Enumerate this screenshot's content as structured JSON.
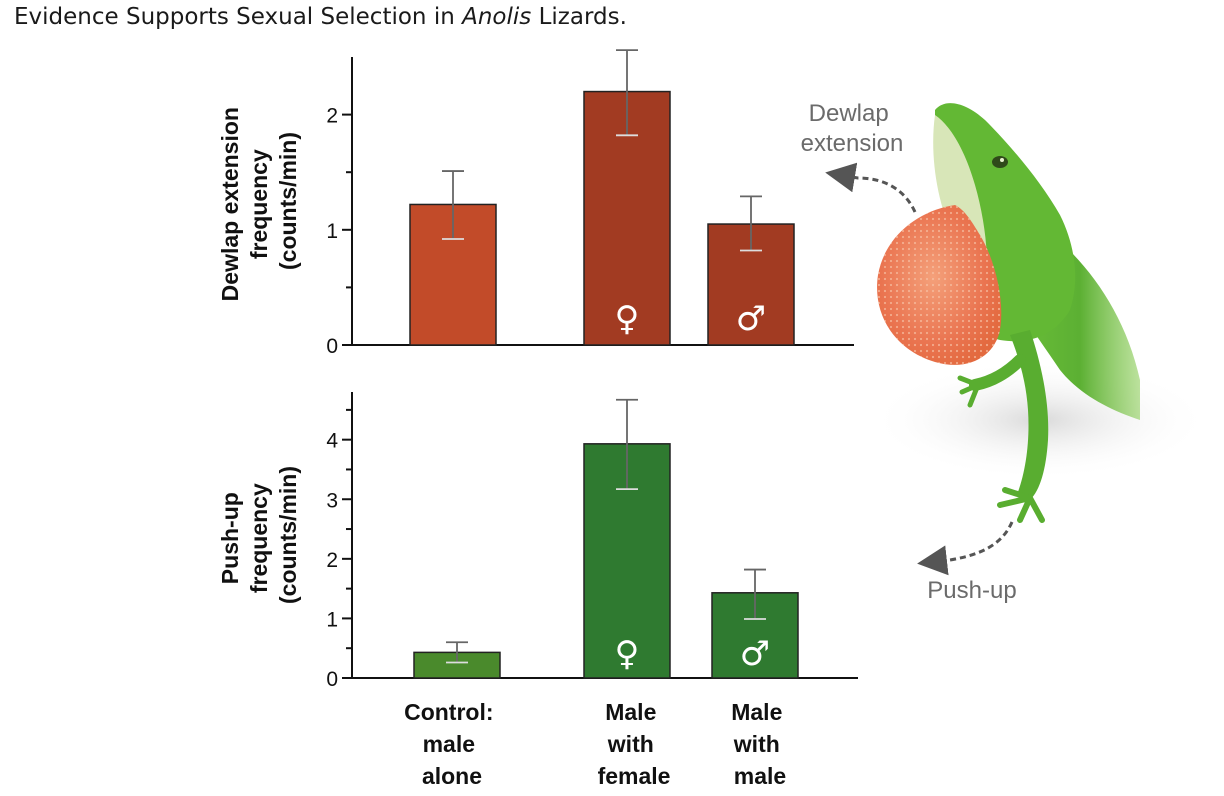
{
  "title_prefix": "Evidence Supports Sexual Selection in ",
  "title_italic": "Anolis",
  "title_suffix": " Lizards.",
  "chart_data": [
    {
      "type": "bar",
      "id": "dewlap",
      "ylabel_lines": [
        "Dewlap extension",
        "frequency",
        "(counts/min)"
      ],
      "ylim": [
        0,
        2.5
      ],
      "yticks": [
        0,
        1,
        2
      ],
      "categories": [
        "Control: male alone",
        "Male with female",
        "Male with male"
      ],
      "values": [
        1.22,
        2.2,
        1.05
      ],
      "err_low": [
        0.92,
        1.82,
        0.82
      ],
      "err_high": [
        1.51,
        2.56,
        1.29
      ],
      "colors": [
        "#c24b29",
        "#a23b22",
        "#a23b22"
      ],
      "symbols": [
        "",
        "♀",
        "♂"
      ]
    },
    {
      "type": "bar",
      "id": "pushup",
      "ylabel_lines": [
        "Push-up",
        "frequency",
        "(counts/min)"
      ],
      "ylim": [
        0,
        4.8
      ],
      "yticks": [
        0,
        1,
        2,
        3,
        4
      ],
      "categories": [
        "Control: male alone",
        "Male with female",
        "Male with male"
      ],
      "values": [
        0.43,
        3.93,
        1.43
      ],
      "err_low": [
        0.26,
        3.17,
        0.99
      ],
      "err_high": [
        0.6,
        4.67,
        1.82
      ],
      "colors": [
        "#4a8a2c",
        "#2f7a30",
        "#2f7a30"
      ],
      "symbols": [
        "",
        "♀",
        "♂"
      ]
    }
  ],
  "category_labels": [
    [
      "Control:",
      "male",
      "alone"
    ],
    [
      "Male",
      "with",
      "female"
    ],
    [
      "Male",
      "with",
      "male"
    ]
  ],
  "annotations": {
    "dewlap_line1": "Dewlap",
    "dewlap_line2": "extension",
    "pushup": "Push-up"
  }
}
